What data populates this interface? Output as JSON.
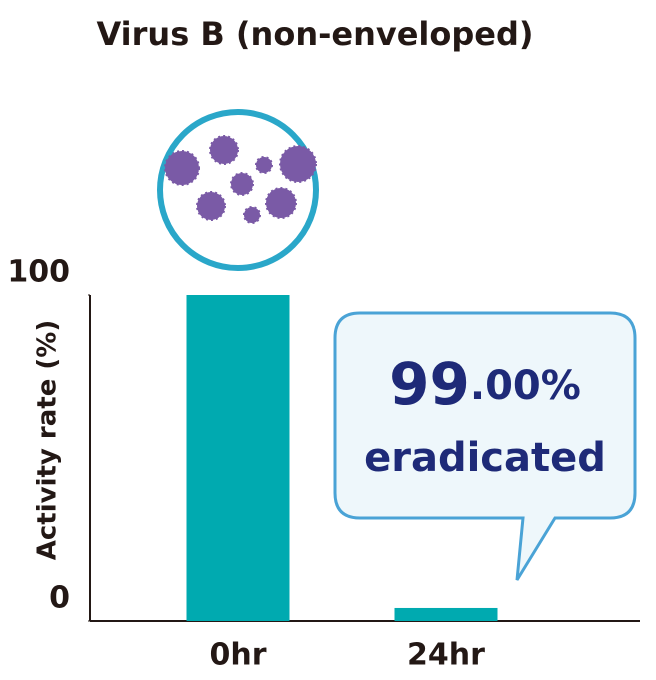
{
  "chart_data": {
    "type": "bar",
    "title": "Virus B (non-enveloped)",
    "y_label": "Activity rate (%)",
    "categories": [
      "0hr",
      "24hr"
    ],
    "values": [
      100,
      4
    ],
    "color": "#00aab0",
    "ylim": [
      0,
      100
    ],
    "yticks": [
      0,
      100
    ],
    "grid": false,
    "annotations": [
      "99",
      ".00%",
      "eradicated"
    ]
  }
}
